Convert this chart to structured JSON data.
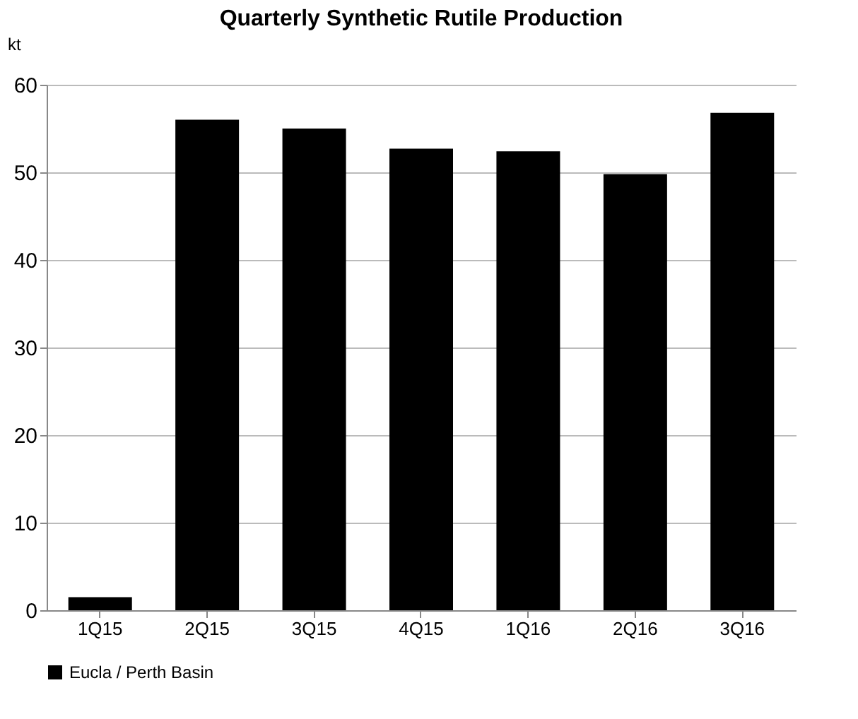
{
  "chart_data": {
    "type": "bar",
    "title": "Quarterly Synthetic Rutile Production",
    "ylabel": "kt",
    "categories": [
      "1Q15",
      "2Q15",
      "3Q15",
      "4Q15",
      "1Q16",
      "2Q16",
      "3Q16"
    ],
    "series": [
      {
        "name": "Eucla / Perth Basin",
        "color": "#000000",
        "values": [
          1.5,
          56.0,
          55.0,
          52.7,
          52.4,
          49.8,
          56.8
        ]
      }
    ],
    "ylim": [
      0,
      60
    ],
    "yticks": [
      0,
      10,
      20,
      30,
      40,
      50,
      60
    ],
    "grid": "y",
    "legend": "bottom"
  }
}
